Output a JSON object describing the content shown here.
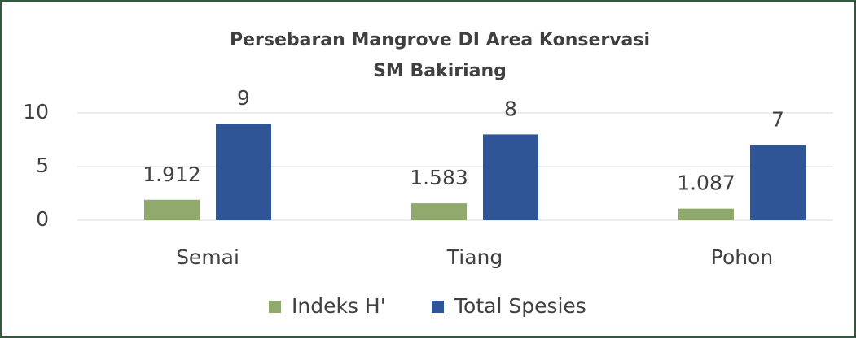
{
  "chart_data": {
    "type": "bar",
    "title": [
      "Persebaran Mangrove DI Area Konservasi",
      "SM Bakiriang"
    ],
    "categories": [
      "Semai",
      "Tiang",
      "Pohon"
    ],
    "series": [
      {
        "name": "Indeks H'",
        "color": "#8faa6c",
        "values": [
          1.912,
          1.583,
          1.087
        ]
      },
      {
        "name": "Total Spesies",
        "color": "#2f5597",
        "values": [
          9,
          8,
          7
        ]
      }
    ],
    "ylim": [
      0,
      10
    ],
    "yticks": [
      0,
      5,
      10
    ],
    "grid": true,
    "legend": "bottom"
  }
}
